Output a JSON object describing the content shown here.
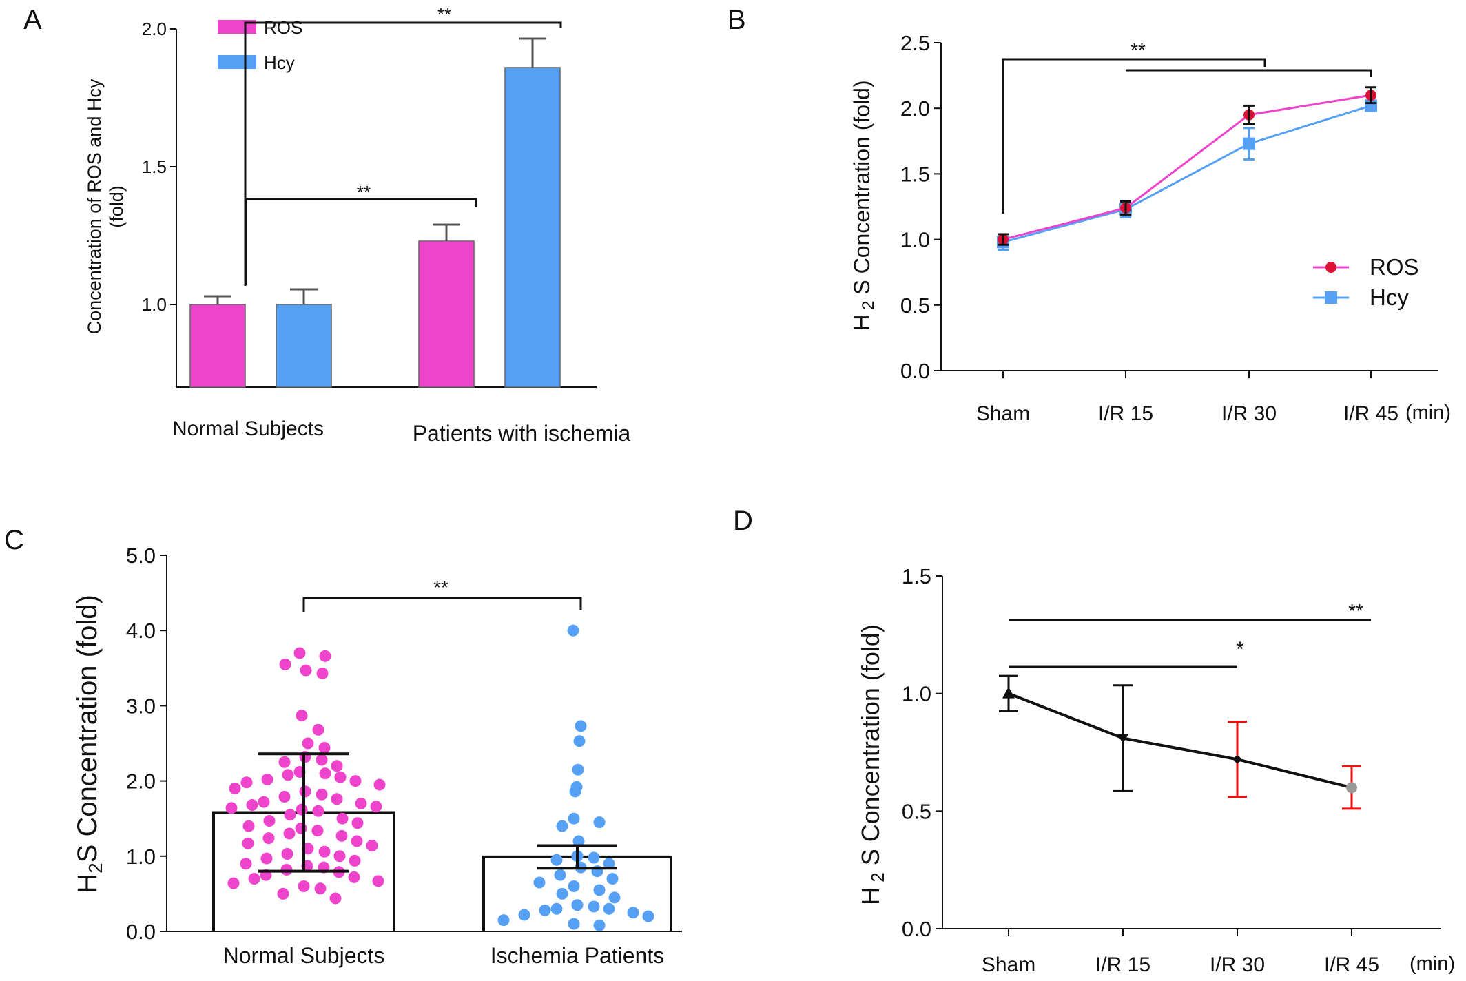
{
  "panels": {
    "A": {
      "letter": "A"
    },
    "B": {
      "letter": "B"
    },
    "C": {
      "letter": "C"
    },
    "D": {
      "letter": "D"
    }
  },
  "colors": {
    "ros": "#ee44cc",
    "hcy": "#55a0f5",
    "black": "#111111",
    "red": "#ee1111",
    "dot_red": "#dd1133",
    "grey_dot": "#999999"
  },
  "chart_data": [
    {
      "id": "A",
      "type": "bar",
      "ylabel": "Concentration of ROS and Hcy",
      "ylabel2": "(fold)",
      "ylim": [
        0.7,
        2.0
      ],
      "yticks": [
        1.0,
        1.5,
        2.0
      ],
      "ytick_labels": [
        "1.0",
        "1.5",
        "2.0"
      ],
      "categories": [
        "Normal Subjects",
        "Patients with ischemia"
      ],
      "series": [
        {
          "name": "ROS",
          "values": [
            1.0,
            1.23
          ],
          "errors": [
            0.03,
            0.06
          ]
        },
        {
          "name": "Hcy",
          "values": [
            1.0,
            1.86
          ],
          "errors": [
            0.055,
            0.105
          ]
        }
      ],
      "legend": [
        "ROS",
        "Hcy"
      ],
      "legend_position": "top-left",
      "annotations": [
        "**",
        "**"
      ]
    },
    {
      "id": "B",
      "type": "line",
      "ylabel_main": "H",
      "ylabel_sub": "2",
      "ylabel_rest": " S Concentration (fold)",
      "ylim": [
        0,
        2.5
      ],
      "yticks": [
        0,
        0.5,
        1.0,
        1.5,
        2.0,
        2.5
      ],
      "ytick_labels": [
        "0.0",
        "0.5",
        "1.0",
        "1.5",
        "2.0",
        "2.5"
      ],
      "categories": [
        "Sham",
        "I/R 15",
        "I/R 30",
        "I/R 45"
      ],
      "xunit": "(min)",
      "series": [
        {
          "name": "ROS",
          "values": [
            1.0,
            1.24,
            1.95,
            2.1
          ],
          "errors": [
            0.04,
            0.05,
            0.07,
            0.06
          ]
        },
        {
          "name": "Hcy",
          "values": [
            0.98,
            1.23,
            1.73,
            2.02
          ],
          "errors": [
            0.06,
            0.06,
            0.12,
            0.04
          ]
        }
      ],
      "legend_position": "right",
      "annotations": [
        "**"
      ]
    },
    {
      "id": "C",
      "type": "scatter",
      "ylabel_main": "H",
      "ylabel_sub": "2",
      "ylabel_rest": "S Concentration  (fold)",
      "ylim": [
        0,
        5.0
      ],
      "yticks": [
        0,
        1.0,
        2.0,
        3.0,
        4.0,
        5.0
      ],
      "ytick_labels": [
        "0.0",
        "1.0",
        "2.0",
        "3.0",
        "4.0",
        "5.0"
      ],
      "categories": [
        "Normal Subjects",
        "Ischemia Patients"
      ],
      "series": [
        {
          "name": "Normal Subjects",
          "mean": 1.58,
          "sd_low": 0.8,
          "sd_high": 2.36,
          "points": [
            3.7,
            3.66,
            3.47,
            3.43,
            3.55,
            2.87,
            2.68,
            2.5,
            2.44,
            2.32,
            2.28,
            2.25,
            2.2,
            2.12,
            2.1,
            2.08,
            2.05,
            2.02,
            2.0,
            1.98,
            1.95,
            1.9,
            1.86,
            1.82,
            1.79,
            1.76,
            1.72,
            1.7,
            1.68,
            1.66,
            1.64,
            1.62,
            1.6,
            1.55,
            1.5,
            1.47,
            1.44,
            1.4,
            1.37,
            1.34,
            1.3,
            1.27,
            1.24,
            1.2,
            1.17,
            1.14,
            1.1,
            1.06,
            1.03,
            1.0,
            0.97,
            0.94,
            0.9,
            0.87,
            0.85,
            0.82,
            0.79,
            0.75,
            0.72,
            0.7,
            0.67,
            0.64,
            0.6,
            0.57,
            0.5,
            0.44
          ]
        },
        {
          "name": "Ischemia Patients",
          "mean": 0.99,
          "sd_low": 0.84,
          "sd_high": 1.14,
          "points": [
            4.0,
            2.73,
            2.53,
            2.15,
            1.92,
            1.86,
            1.5,
            1.45,
            1.4,
            1.2,
            1.0,
            0.98,
            0.95,
            0.9,
            0.85,
            0.8,
            0.75,
            0.7,
            0.65,
            0.6,
            0.55,
            0.5,
            0.45,
            0.35,
            0.33,
            0.3,
            0.3,
            0.28,
            0.25,
            0.22,
            0.2,
            0.15,
            0.1,
            0.08
          ]
        }
      ],
      "annotations": [
        "**"
      ]
    },
    {
      "id": "D",
      "type": "line",
      "ylabel_main": "H",
      "ylabel_sub": "2",
      "ylabel_rest": " S Concentration (fold)",
      "ylim": [
        0,
        1.5
      ],
      "yticks": [
        0,
        0.5,
        1.0,
        1.5
      ],
      "ytick_labels": [
        "0.0",
        "0.5",
        "1.0",
        "1.5"
      ],
      "categories": [
        "Sham",
        "I/R 15",
        "I/R 30",
        "I/R 45"
      ],
      "xunit": "(min)",
      "series": [
        {
          "values": [
            1.0,
            0.81,
            0.72,
            0.6
          ],
          "errors": [
            0.075,
            0.225,
            0.16,
            0.09
          ]
        }
      ],
      "annotations": [
        "**",
        "*"
      ]
    }
  ]
}
